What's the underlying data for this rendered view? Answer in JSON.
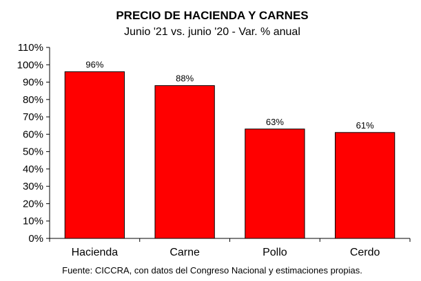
{
  "chart_data": {
    "type": "bar",
    "title": "PRECIO DE HACIENDA Y CARNES",
    "subtitle": "Junio '21 vs. junio '20 - Var. % anual",
    "categories": [
      "Hacienda",
      "Carne",
      "Pollo",
      "Cerdo"
    ],
    "values": [
      96,
      88,
      63,
      61
    ],
    "data_labels": [
      "96%",
      "88%",
      "63%",
      "61%"
    ],
    "ylim": [
      0,
      110
    ],
    "yticks": [
      "0%",
      "10%",
      "20%",
      "30%",
      "40%",
      "50%",
      "60%",
      "70%",
      "80%",
      "90%",
      "100%",
      "110%"
    ],
    "bar_color": "#ff0000",
    "grid": false,
    "xlabel": "",
    "ylabel": ""
  },
  "footer": {
    "source": "Fuente: CICCRA, con datos del Congreso Nacional y estimaciones propias."
  }
}
